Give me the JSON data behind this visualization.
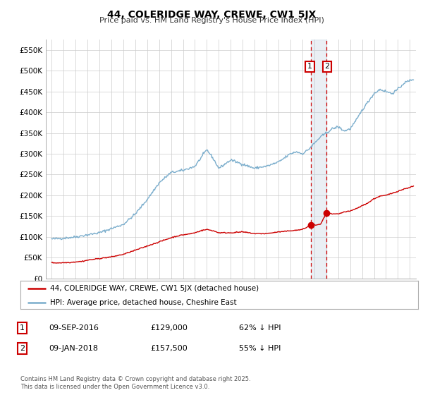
{
  "title": "44, COLERIDGE WAY, CREWE, CW1 5JX",
  "subtitle": "Price paid vs. HM Land Registry's House Price Index (HPI)",
  "legend_line1": "44, COLERIDGE WAY, CREWE, CW1 5JX (detached house)",
  "legend_line2": "HPI: Average price, detached house, Cheshire East",
  "red_color": "#cc0000",
  "blue_color": "#7aadcc",
  "marker1_date": 2016.69,
  "marker1_value": 129000,
  "marker2_date": 2018.03,
  "marker2_value": 157500,
  "footnote": "Contains HM Land Registry data © Crown copyright and database right 2025.\nThis data is licensed under the Open Government Licence v3.0.",
  "ylim": [
    0,
    575000
  ],
  "xlim": [
    1994.5,
    2025.5
  ],
  "yticks": [
    0,
    50000,
    100000,
    150000,
    200000,
    250000,
    300000,
    350000,
    400000,
    450000,
    500000,
    550000
  ],
  "ytick_labels": [
    "£0",
    "£50K",
    "£100K",
    "£150K",
    "£200K",
    "£250K",
    "£300K",
    "£350K",
    "£400K",
    "£450K",
    "£500K",
    "£550K"
  ],
  "xticks": [
    1995,
    1996,
    1997,
    1998,
    1999,
    2000,
    2001,
    2002,
    2003,
    2004,
    2005,
    2006,
    2007,
    2008,
    2009,
    2010,
    2011,
    2012,
    2013,
    2014,
    2015,
    2016,
    2017,
    2018,
    2019,
    2020,
    2021,
    2022,
    2023,
    2024,
    2025
  ],
  "background_color": "#ffffff",
  "grid_color": "#cccccc",
  "span_color": "#bbccdd",
  "span_alpha": 0.3
}
